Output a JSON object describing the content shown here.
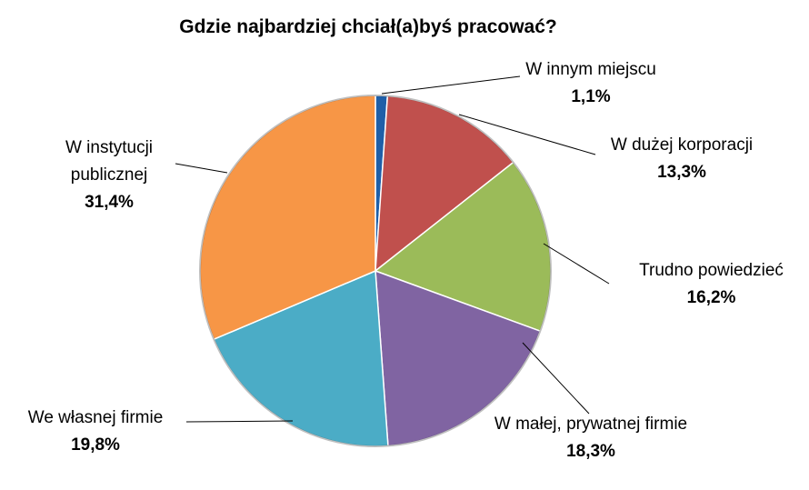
{
  "chart_data": {
    "type": "pie",
    "title": "Gdzie najbardziej chciał(a)byś pracować?",
    "categories": [
      "W innym miejscu",
      "W dużej korporacji",
      "Trudno powiedzieć",
      "W małej, prywatnej firmie",
      "We własnej firmie",
      "W instytucji publicznej"
    ],
    "values": [
      1.1,
      13.3,
      16.2,
      18.3,
      19.8,
      31.4
    ],
    "value_labels": [
      "1,1%",
      "13,3%",
      "16,2%",
      "18,3%",
      "19,8%",
      "31,4%"
    ],
    "colors": [
      "#1f5fa8",
      "#c0504d",
      "#9bbb59",
      "#8064a2",
      "#4bacc6",
      "#f79646"
    ]
  }
}
